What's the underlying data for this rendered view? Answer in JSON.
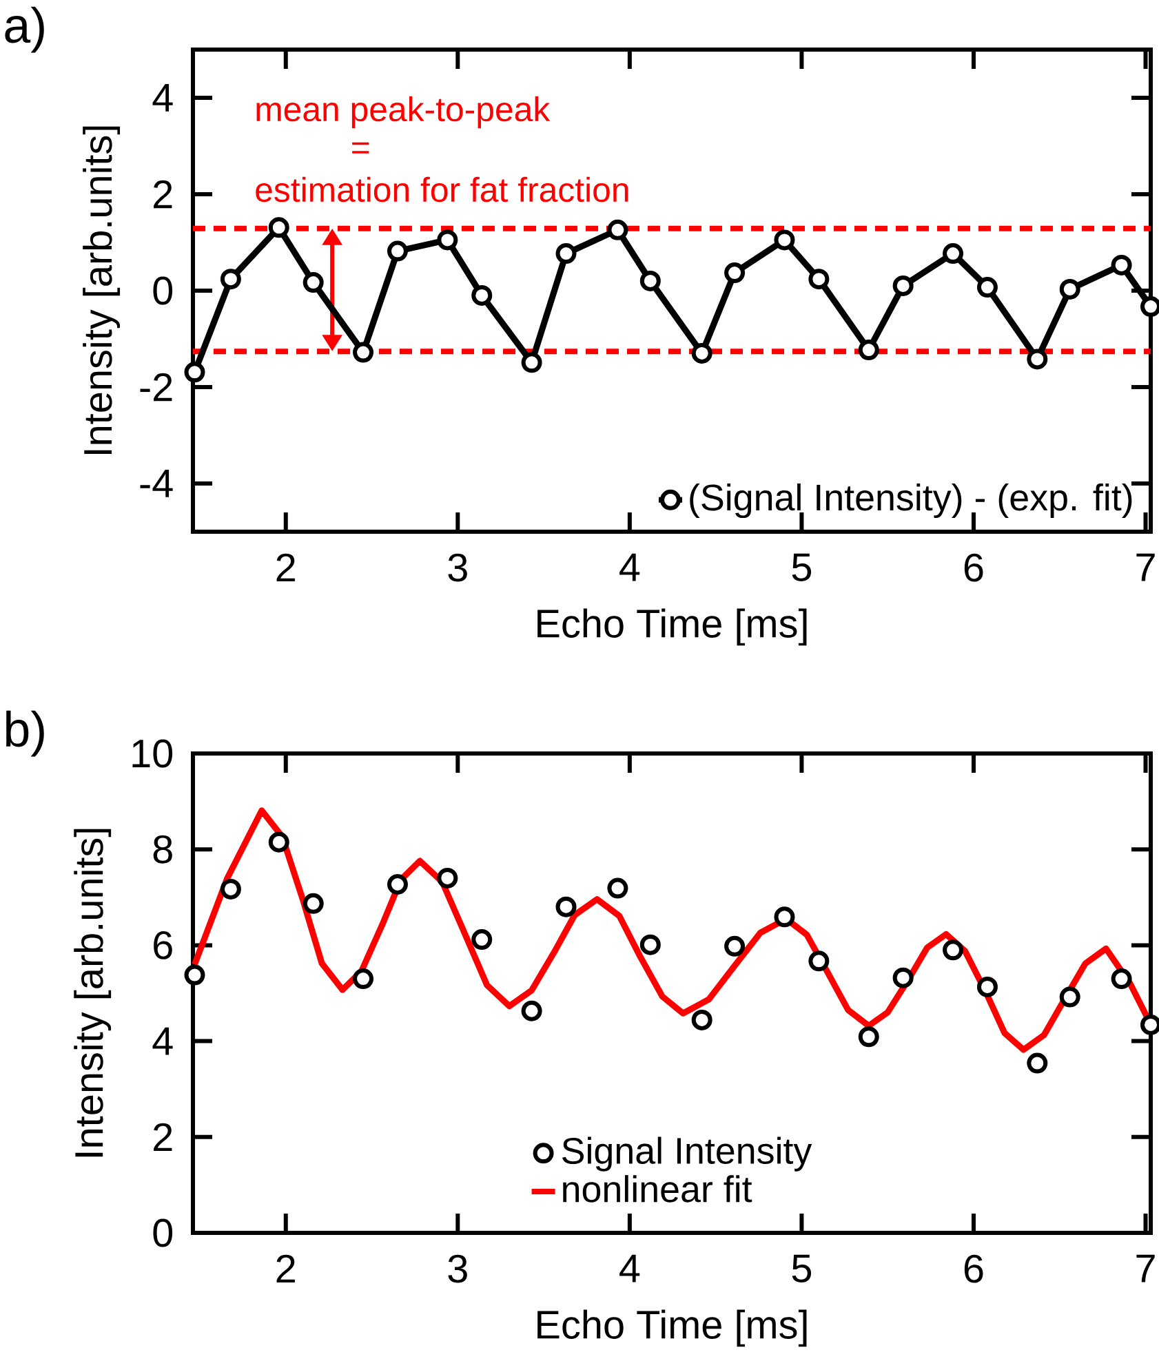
{
  "chart_data": [
    {
      "type": "line",
      "xlabel": "Echo Time [ms]",
      "ylabel": "Intensity [arb.units]",
      "xlim": [
        1.46,
        7.03
      ],
      "xticks": [
        2,
        3,
        4,
        5,
        6,
        7
      ],
      "ylim": [
        -5,
        5
      ],
      "yticks": [
        -4,
        -2,
        0,
        2,
        4
      ],
      "legend": "bottom right",
      "marker": "circle",
      "line_style": "solid",
      "series": [
        {
          "name": "(Signal Intensity) - (exp. fit)",
          "color": "#000000",
          "x": [
            1.47,
            1.68,
            1.96,
            2.16,
            2.45,
            2.65,
            2.94,
            3.14,
            3.43,
            3.63,
            3.93,
            4.12,
            4.42,
            4.61,
            4.9,
            5.1,
            5.39,
            5.59,
            5.88,
            6.08,
            6.37,
            6.56,
            6.86,
            7.03
          ],
          "values": [
            -1.69,
            0.24,
            1.31,
            0.17,
            -1.28,
            0.82,
            1.05,
            -0.1,
            -1.49,
            0.77,
            1.26,
            0.2,
            -1.3,
            0.37,
            1.05,
            0.24,
            -1.23,
            0.1,
            0.77,
            0.07,
            -1.42,
            0.03,
            0.53,
            -0.33
          ]
        }
      ],
      "ref_lines": [
        {
          "axis": "y",
          "value": 1.29,
          "color": "#ff0000",
          "line_style": "dashed"
        },
        {
          "axis": "y",
          "value": -1.26,
          "color": "#ff0000",
          "line_style": "dashed"
        }
      ],
      "annotations": [
        "a)",
        "mean peak-to-peak",
        "=",
        "estimation for fat fraction"
      ]
    },
    {
      "type": "line",
      "xlabel": "Echo Time [ms]",
      "ylabel": "Intensity [arb.units]",
      "xlim": [
        1.46,
        7.03
      ],
      "xticks": [
        2,
        3,
        4,
        5,
        6,
        7
      ],
      "ylim": [
        0,
        10
      ],
      "yticks": [
        0,
        2,
        4,
        6,
        8,
        10
      ],
      "legend": "bottom",
      "series": [
        {
          "name": "Signal Intensity",
          "type": "scatter",
          "marker": "circle",
          "color": "#000000",
          "x": [
            1.47,
            1.68,
            1.96,
            2.16,
            2.45,
            2.65,
            2.94,
            3.14,
            3.43,
            3.63,
            3.93,
            4.12,
            4.42,
            4.61,
            4.9,
            5.1,
            5.39,
            5.59,
            5.88,
            6.08,
            6.37,
            6.56,
            6.86,
            7.03
          ],
          "values": [
            5.38,
            7.17,
            8.15,
            6.87,
            5.3,
            7.27,
            7.4,
            6.12,
            4.63,
            6.8,
            7.19,
            6.01,
            4.44,
            5.98,
            6.59,
            5.67,
            4.09,
            5.32,
            5.9,
            5.13,
            3.54,
            4.92,
            5.3,
            4.34
          ]
        },
        {
          "name": "nonlinear fit",
          "type": "line",
          "color": "#ff0000",
          "x": [
            1.47,
            1.66,
            1.86,
            1.98,
            2.1,
            2.21,
            2.33,
            2.44,
            2.56,
            2.67,
            2.78,
            2.91,
            3.04,
            3.17,
            3.3,
            3.43,
            3.56,
            3.68,
            3.81,
            3.94,
            4.06,
            4.19,
            4.31,
            4.46,
            4.61,
            4.76,
            4.91,
            5.03,
            5.15,
            5.27,
            5.39,
            5.5,
            5.62,
            5.73,
            5.84,
            5.95,
            6.07,
            6.18,
            6.29,
            6.41,
            6.53,
            6.65,
            6.77,
            6.91,
            7.03
          ],
          "values": [
            5.6,
            7.4,
            8.81,
            8.26,
            6.94,
            5.62,
            5.07,
            5.46,
            6.42,
            7.37,
            7.76,
            7.32,
            6.25,
            5.17,
            4.73,
            5.06,
            5.85,
            6.63,
            6.96,
            6.61,
            5.77,
            4.93,
            4.58,
            4.87,
            5.57,
            6.26,
            6.55,
            6.22,
            5.44,
            4.65,
            4.32,
            4.6,
            5.28,
            5.95,
            6.23,
            5.88,
            5.03,
            4.17,
            3.82,
            4.13,
            4.88,
            5.62,
            5.93,
            5.2,
            4.35
          ]
        }
      ],
      "annotations": [
        "b)"
      ]
    }
  ]
}
